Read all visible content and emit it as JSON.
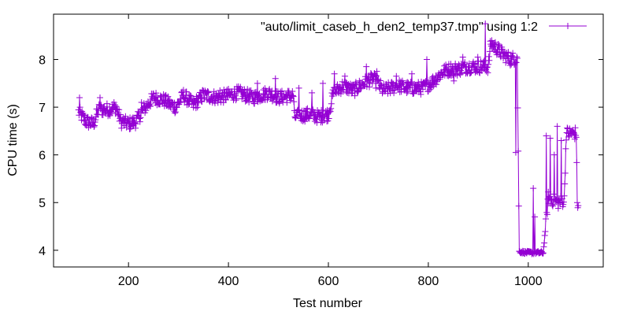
{
  "chart_data": {
    "type": "line",
    "title": "",
    "xlabel": "Test number",
    "ylabel": "CPU time (s)",
    "xlim": [
      50,
      1150
    ],
    "ylim": [
      3.65,
      8.95
    ],
    "x_ticks": [
      200,
      400,
      600,
      800,
      1000
    ],
    "y_ticks": [
      4,
      5,
      6,
      7,
      8
    ],
    "grid": false,
    "legend": {
      "position": "top-right"
    },
    "series_color": "#9400d3",
    "point_marker": "plus",
    "series": [
      {
        "name": "\"auto/limit_caseb_h_den2_temp37.tmp\" using 1:2",
        "knots": [
          [
            100,
            6.9
          ],
          [
            115,
            6.7
          ],
          [
            130,
            6.65
          ],
          [
            140,
            6.95
          ],
          [
            160,
            6.95
          ],
          [
            175,
            7.0
          ],
          [
            185,
            6.7
          ],
          [
            200,
            6.65
          ],
          [
            215,
            6.7
          ],
          [
            230,
            6.95
          ],
          [
            250,
            7.2
          ],
          [
            270,
            7.15
          ],
          [
            285,
            7.05
          ],
          [
            295,
            7.0
          ],
          [
            310,
            7.25
          ],
          [
            330,
            7.05
          ],
          [
            350,
            7.25
          ],
          [
            380,
            7.2
          ],
          [
            400,
            7.25
          ],
          [
            420,
            7.3
          ],
          [
            450,
            7.2
          ],
          [
            480,
            7.3
          ],
          [
            500,
            7.2
          ],
          [
            530,
            7.25
          ],
          [
            532,
            6.8
          ],
          [
            560,
            6.85
          ],
          [
            580,
            6.8
          ],
          [
            600,
            6.85
          ],
          [
            610,
            7.3
          ],
          [
            630,
            7.45
          ],
          [
            650,
            7.35
          ],
          [
            670,
            7.5
          ],
          [
            690,
            7.6
          ],
          [
            710,
            7.35
          ],
          [
            740,
            7.45
          ],
          [
            760,
            7.4
          ],
          [
            790,
            7.4
          ],
          [
            810,
            7.55
          ],
          [
            830,
            7.75
          ],
          [
            845,
            7.8
          ],
          [
            860,
            7.8
          ],
          [
            880,
            7.85
          ],
          [
            900,
            7.85
          ],
          [
            920,
            7.85
          ],
          [
            925,
            8.35
          ],
          [
            940,
            8.2
          ],
          [
            950,
            8.1
          ],
          [
            965,
            8.0
          ],
          [
            978,
            8.05
          ],
          [
            982,
            3.97
          ],
          [
            1000,
            3.95
          ],
          [
            1030,
            3.95
          ],
          [
            1040,
            5.1
          ],
          [
            1060,
            5.0
          ],
          [
            1072,
            5.05
          ],
          [
            1076,
            6.45
          ],
          [
            1090,
            6.45
          ],
          [
            1096,
            6.45
          ],
          [
            1098,
            4.98
          ],
          [
            1100,
            4.97
          ]
        ],
        "spikes": [
          [
            102,
            7.2
          ],
          [
            143,
            7.2
          ],
          [
            171,
            7.1
          ],
          [
            226,
            7.1
          ],
          [
            348,
            7.35
          ],
          [
            383,
            7.35
          ],
          [
            458,
            7.5
          ],
          [
            494,
            7.6
          ],
          [
            541,
            7.4
          ],
          [
            567,
            7.3
          ],
          [
            589,
            7.5
          ],
          [
            612,
            7.7
          ],
          [
            633,
            7.65
          ],
          [
            676,
            7.85
          ],
          [
            697,
            7.75
          ],
          [
            736,
            7.65
          ],
          [
            767,
            7.7
          ],
          [
            797,
            8.0
          ],
          [
            851,
            7.55
          ],
          [
            869,
            8.05
          ],
          [
            899,
            8.05
          ],
          [
            914,
            8.75
          ],
          [
            975,
            6.05
          ],
          [
            1010,
            5.3
          ],
          [
            1013,
            4.7
          ],
          [
            1036,
            6.4
          ],
          [
            1044,
            6.35
          ],
          [
            1052,
            6.0
          ],
          [
            1058,
            6.6
          ],
          [
            1066,
            6.3
          ],
          [
            1080,
            6.45
          ],
          [
            1086,
            6.5
          ]
        ]
      }
    ]
  }
}
